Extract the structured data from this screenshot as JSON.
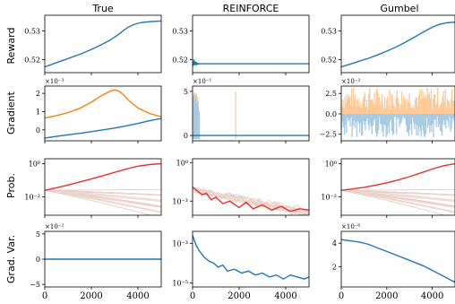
{
  "figure": {
    "columns": [
      "True",
      "REINFORCE",
      "Gumbel"
    ],
    "row_labels": [
      "Reward",
      "Gradient",
      "Prob.",
      "Grad. Var."
    ],
    "x_ticks": [
      "0",
      "2000",
      "4000"
    ]
  },
  "colors": {
    "blue": "#1f77b4",
    "orange": "#ff7f0e",
    "red": "#e8302a",
    "light_blue": "#a6cbe3",
    "light_orange": "#ffc996"
  },
  "chart_data": [
    {
      "type": "line",
      "panel": "True / Reward",
      "col": 0,
      "row": 0,
      "xlim": [
        0,
        5000
      ],
      "ylim": [
        0.5155,
        0.5355
      ],
      "yticks": [
        {
          "v": 0.52,
          "label": "0.52"
        },
        {
          "v": 0.53,
          "label": "0.53"
        }
      ],
      "series": [
        {
          "color": "blue",
          "x": [
            0,
            400,
            800,
            1200,
            1600,
            2000,
            2400,
            2800,
            3200,
            3400,
            3600,
            3800,
            4000,
            4200,
            4400,
            4600,
            4800,
            5000
          ],
          "y": [
            0.5175,
            0.5187,
            0.5198,
            0.521,
            0.5222,
            0.5236,
            0.5251,
            0.5268,
            0.529,
            0.5303,
            0.5314,
            0.5322,
            0.5327,
            0.533,
            0.5332,
            0.5333,
            0.5334,
            0.5335
          ]
        }
      ]
    },
    {
      "type": "line",
      "panel": "REINFORCE / Reward",
      "col": 1,
      "row": 0,
      "xlim": [
        0,
        5000
      ],
      "ylim": [
        0.5155,
        0.5355
      ],
      "yticks": [
        {
          "v": 0.52,
          "label": "0.52"
        },
        {
          "v": 0.53,
          "label": "0.53"
        }
      ],
      "series": [
        {
          "color": "blue",
          "x": [
            0,
            20,
            40,
            60,
            80,
            100,
            120,
            140,
            160,
            180,
            200,
            230,
            260,
            300,
            350,
            400,
            500,
            700,
            1000,
            1500,
            2000,
            3000,
            4000,
            5000
          ],
          "y": [
            0.5175,
            0.5195,
            0.5182,
            0.52,
            0.518,
            0.5194,
            0.5183,
            0.5192,
            0.5184,
            0.5188,
            0.5185,
            0.5187,
            0.5185,
            0.5186,
            0.5186,
            0.5186,
            0.5186,
            0.5186,
            0.5186,
            0.5186,
            0.5186,
            0.5186,
            0.5186,
            0.5186
          ]
        }
      ]
    },
    {
      "type": "line",
      "panel": "Gumbel / Reward",
      "col": 2,
      "row": 0,
      "xlim": [
        0,
        5000
      ],
      "ylim": [
        0.5155,
        0.5355
      ],
      "yticks": [
        {
          "v": 0.52,
          "label": "0.52"
        },
        {
          "v": 0.53,
          "label": "0.53"
        }
      ],
      "series": [
        {
          "color": "blue",
          "x": [
            0,
            400,
            800,
            1200,
            1600,
            2000,
            2400,
            2800,
            3200,
            3600,
            4000,
            4200,
            4400,
            4600,
            4800,
            5000
          ],
          "y": [
            0.5175,
            0.5185,
            0.5195,
            0.5205,
            0.5217,
            0.523,
            0.5244,
            0.526,
            0.5278,
            0.5296,
            0.5313,
            0.532,
            0.5325,
            0.5328,
            0.533,
            0.5331
          ]
        }
      ]
    },
    {
      "type": "line",
      "panel": "True / Gradient",
      "col": 0,
      "row": 1,
      "xlim": [
        0,
        5000
      ],
      "ylim": [
        -0.6,
        2.4
      ],
      "scale_label": "×10⁻³",
      "yticks": [
        {
          "v": 0,
          "label": "0"
        },
        {
          "v": 1,
          "label": "1"
        },
        {
          "v": 2,
          "label": "2"
        }
      ],
      "series": [
        {
          "color": "orange",
          "x": [
            0,
            500,
            1000,
            1500,
            2000,
            2400,
            2800,
            3000,
            3200,
            3400,
            3600,
            4000,
            4500,
            5000
          ],
          "y": [
            0.65,
            0.78,
            0.95,
            1.18,
            1.52,
            1.85,
            2.12,
            2.2,
            2.12,
            1.9,
            1.62,
            1.2,
            0.9,
            0.72
          ]
        },
        {
          "color": "blue",
          "x": [
            0,
            500,
            1000,
            1500,
            2000,
            2500,
            3000,
            3500,
            4000,
            4500,
            5000
          ],
          "y": [
            -0.45,
            -0.36,
            -0.27,
            -0.19,
            -0.1,
            0.0,
            0.1,
            0.22,
            0.35,
            0.5,
            0.62
          ]
        }
      ]
    },
    {
      "type": "line",
      "panel": "REINFORCE / Gradient",
      "col": 1,
      "row": 1,
      "xlim": [
        0,
        5000
      ],
      "ylim": [
        -0.6,
        5.6
      ],
      "scale_label": "×10⁻¹",
      "yticks": [
        {
          "v": 0,
          "label": "0"
        },
        {
          "v": 5,
          "label": "5"
        }
      ],
      "spikes": [
        {
          "color": "light_orange",
          "x": [
            30,
            60,
            90,
            130,
            170,
            210,
            250,
            300,
            1850
          ],
          "top": [
            4.5,
            4.9,
            4.0,
            4.6,
            3.8,
            4.4,
            3.2,
            2.5,
            5.0
          ]
        },
        {
          "color": "light_blue",
          "x": [
            40,
            80,
            120,
            160,
            200,
            240,
            280
          ],
          "top": [
            4.3,
            4.7,
            4.1,
            4.8,
            3.6,
            3.9,
            2.8
          ]
        }
      ],
      "series": [
        {
          "color": "blue",
          "x": [
            0,
            5000
          ],
          "y": [
            0,
            0
          ]
        }
      ]
    },
    {
      "type": "bar",
      "panel": "Gumbel / Gradient",
      "col": 2,
      "row": 1,
      "xlim": [
        0,
        5000
      ],
      "ylim": [
        -3.3,
        3.4
      ],
      "scale_label": "×10⁻²",
      "yticks": [
        {
          "v": -2.5,
          "label": "−2.5"
        },
        {
          "v": 0,
          "label": "0.0"
        },
        {
          "v": 2.5,
          "label": "2.5"
        }
      ],
      "series": [
        {
          "name_hint": "positive",
          "color": "light_orange"
        },
        {
          "name_hint": "negative",
          "color": "light_blue"
        }
      ]
    },
    {
      "type": "line",
      "panel": "True / Prob.",
      "col": 0,
      "row": 2,
      "xlim": [
        0,
        5000
      ],
      "log": true,
      "ylim_log10": [
        -3.1,
        0.3
      ],
      "yticks": [
        {
          "v": 0,
          "label": "10⁰"
        },
        {
          "v": -2,
          "label": "10⁻²"
        }
      ],
      "series": [
        {
          "color": "red",
          "x": [
            0,
            500,
            1000,
            1500,
            2000,
            2500,
            3000,
            3500,
            4000,
            4500,
            5000
          ],
          "y_log10": [
            -1.6,
            -1.45,
            -1.28,
            -1.1,
            -0.92,
            -0.72,
            -0.52,
            -0.32,
            -0.15,
            -0.05,
            0.0
          ]
        }
      ]
    },
    {
      "type": "line",
      "panel": "REINFORCE / Prob.",
      "col": 1,
      "row": 2,
      "xlim": [
        0,
        5000
      ],
      "log": true,
      "ylim_log10": [
        -4.1,
        0.3
      ],
      "yticks": [
        {
          "v": 0,
          "label": "10⁰"
        },
        {
          "v": -3,
          "label": "10⁻³"
        }
      ],
      "series": [
        {
          "color": "red",
          "x": [
            0,
            200,
            400,
            600,
            800,
            1000,
            1300,
            1600,
            2000,
            2300,
            2600,
            3000,
            3400,
            3800,
            4200,
            4600,
            5000
          ],
          "y_log10": [
            -1.9,
            -2.2,
            -2.5,
            -2.4,
            -2.9,
            -2.7,
            -3.2,
            -3.0,
            -3.5,
            -3.1,
            -3.6,
            -3.3,
            -3.7,
            -3.4,
            -3.8,
            -3.6,
            -3.7
          ]
        }
      ]
    },
    {
      "type": "line",
      "panel": "Gumbel / Prob.",
      "col": 2,
      "row": 2,
      "xlim": [
        0,
        5000
      ],
      "log": true,
      "ylim_log10": [
        -3.1,
        0.3
      ],
      "yticks": [
        {
          "v": 0,
          "label": "10⁰"
        },
        {
          "v": -2,
          "label": "10⁻²"
        }
      ],
      "series": [
        {
          "color": "red",
          "x": [
            0,
            500,
            1000,
            1500,
            2000,
            2500,
            3000,
            3500,
            4000,
            4500,
            5000
          ],
          "y_log10": [
            -1.6,
            -1.52,
            -1.42,
            -1.3,
            -1.15,
            -0.98,
            -0.78,
            -0.55,
            -0.32,
            -0.12,
            0.0
          ]
        }
      ]
    },
    {
      "type": "line",
      "panel": "True / Grad. Var.",
      "col": 0,
      "row": 3,
      "xlim": [
        0,
        5000
      ],
      "ylim": [
        -5.5,
        5.5
      ],
      "scale_label": "×10⁻²",
      "yticks": [
        {
          "v": -5,
          "label": "−5"
        },
        {
          "v": 0,
          "label": "0"
        },
        {
          "v": 5,
          "label": "5"
        }
      ],
      "series": [
        {
          "color": "blue",
          "x": [
            0,
            5000
          ],
          "y": [
            0,
            0
          ]
        }
      ]
    },
    {
      "type": "line",
      "panel": "REINFORCE / Grad. Var.",
      "col": 1,
      "row": 3,
      "xlim": [
        0,
        5000
      ],
      "log": true,
      "ylim_log10": [
        -5.2,
        -2.4
      ],
      "yticks": [
        {
          "v": -3,
          "label": "10⁻³"
        },
        {
          "v": -5,
          "label": "10⁻⁵"
        }
      ],
      "series": [
        {
          "color": "blue",
          "x": [
            0,
            150,
            300,
            500,
            700,
            900,
            1100,
            1300,
            1500,
            1800,
            2100,
            2400,
            2700,
            3000,
            3300,
            3600,
            3900,
            4200,
            4500,
            4800,
            5000
          ],
          "y_log10": [
            -2.6,
            -3.1,
            -3.4,
            -3.7,
            -3.9,
            -4.0,
            -4.2,
            -4.1,
            -4.4,
            -4.3,
            -4.5,
            -4.4,
            -4.6,
            -4.5,
            -4.7,
            -4.6,
            -4.8,
            -4.6,
            -4.7,
            -4.8,
            -4.7
          ]
        }
      ]
    },
    {
      "type": "line",
      "panel": "Gumbel / Grad. Var.",
      "col": 2,
      "row": 3,
      "xlim": [
        0,
        5000
      ],
      "ylim": [
        0.3,
        5.0
      ],
      "scale_label": "×10⁻⁶",
      "yticks": [
        {
          "v": 2,
          "label": "2"
        },
        {
          "v": 4,
          "label": "4"
        }
      ],
      "series": [
        {
          "color": "blue",
          "x": [
            0,
            400,
            800,
            1200,
            1600,
            2000,
            2400,
            2800,
            3200,
            3600,
            4000,
            4400,
            4800,
            5000
          ],
          "y": [
            4.3,
            4.2,
            4.1,
            3.9,
            3.6,
            3.3,
            3.0,
            2.7,
            2.4,
            2.1,
            1.7,
            1.3,
            0.9,
            0.7
          ]
        }
      ]
    }
  ]
}
